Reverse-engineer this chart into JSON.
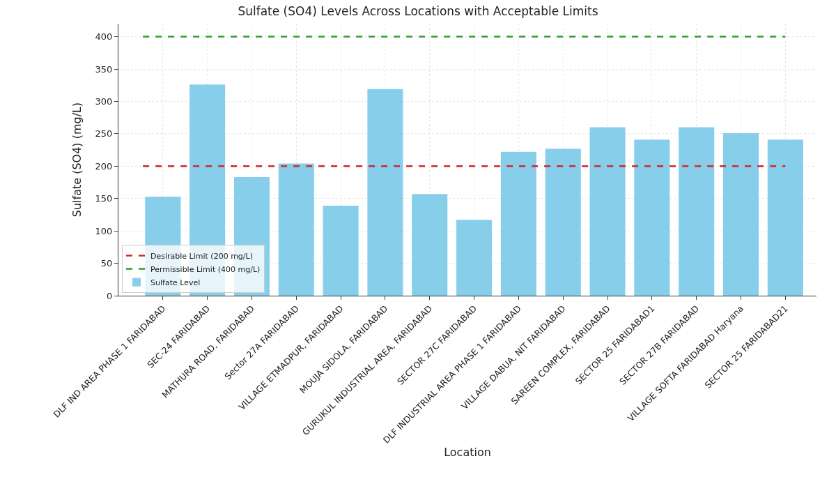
{
  "chart_data": {
    "type": "bar",
    "title": "Sulfate (SO4) Levels Across Locations with Acceptable Limits",
    "xlabel": "Location",
    "ylabel": "Sulfate (SO4) (mg/L)",
    "categories": [
      "DLF IND AREA PHASE 1 FARIDABAD",
      "SEC-24 FARIDABAD",
      "MATHURA ROAD, FARIDABAD",
      "Sector 27A FARIDABAD",
      "VILLAGE ETMADPUR, FARIDABAD",
      "MOUJA SIDOLA, FARIDABAD",
      "GURUKUL INDUSTRIAL AREA, FARIDABAD",
      "SECTOR 27C FARIDABAD",
      "DLF INDUSTRIAL AREA PHASE 1 FARIDABAD",
      "VILLAGE DABUA, NIT FARIDABAD",
      "SAREEN COMPLEX, FARIDABAD",
      "SECTOR 25 FARIDABAD1",
      "SECTOR 27B FARIDABAD",
      "VILLAGE SOFTA FARIDABAD Haryana",
      "SECTOR 25 FARIDABAD21"
    ],
    "series": [
      {
        "name": "Sulfate Level",
        "color": "#87ceeb",
        "values": [
          153,
          326,
          183,
          204,
          139,
          319,
          157,
          117,
          222,
          227,
          260,
          241,
          260,
          251,
          241
        ]
      }
    ],
    "ylim": [
      0,
      420
    ],
    "yticks": [
      0,
      50,
      100,
      150,
      200,
      250,
      300,
      350,
      400
    ],
    "ref_lines": [
      {
        "axis": "y",
        "value": 200,
        "label": "Desirable Limit (200 mg/L)",
        "color": "#d62728",
        "line_style": "dashed"
      },
      {
        "axis": "y",
        "value": 400,
        "label": "Permissible Limit (400 mg/L)",
        "color": "#2ca02c",
        "line_style": "dashed"
      }
    ],
    "grid": true,
    "legend": "bottom left"
  }
}
